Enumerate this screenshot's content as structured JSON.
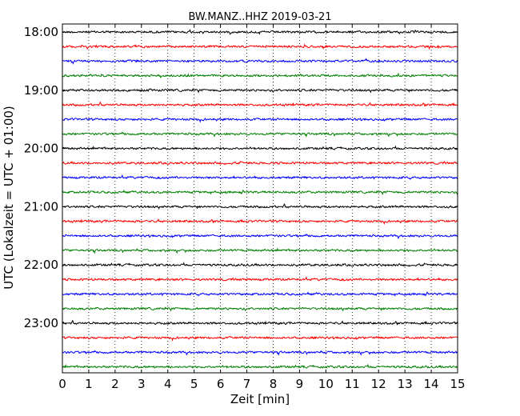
{
  "chart_data": {
    "type": "line",
    "title": "BW.MANZ..HHZ 2019-03-21",
    "xlabel": "Zeit  [min]",
    "ylabel": "UTC (Lokalzeit = UTC + 01:00)",
    "xlim": [
      0,
      15
    ],
    "x_ticks": [
      "0",
      "1",
      "2",
      "3",
      "4",
      "5",
      "6",
      "7",
      "8",
      "9",
      "10",
      "11",
      "12",
      "13",
      "14",
      "15"
    ],
    "y_ticks": [
      "18:00",
      "19:00",
      "20:00",
      "21:00",
      "22:00",
      "23:00"
    ],
    "x_grid": true,
    "row_minutes": 15,
    "start_time": "18:00",
    "end_time": "24:00",
    "row_count": 24,
    "series_colors": [
      "#000000",
      "#ff0000",
      "#0000ff",
      "#007f00"
    ],
    "rows": [
      {
        "start": "18:00",
        "color": "#000000"
      },
      {
        "start": "18:15",
        "color": "#ff0000"
      },
      {
        "start": "18:30",
        "color": "#0000ff"
      },
      {
        "start": "18:45",
        "color": "#007f00"
      },
      {
        "start": "19:00",
        "color": "#000000"
      },
      {
        "start": "19:15",
        "color": "#ff0000"
      },
      {
        "start": "19:30",
        "color": "#0000ff"
      },
      {
        "start": "19:45",
        "color": "#007f00"
      },
      {
        "start": "20:00",
        "color": "#000000"
      },
      {
        "start": "20:15",
        "color": "#ff0000"
      },
      {
        "start": "20:30",
        "color": "#0000ff"
      },
      {
        "start": "20:45",
        "color": "#007f00"
      },
      {
        "start": "21:00",
        "color": "#000000"
      },
      {
        "start": "21:15",
        "color": "#ff0000"
      },
      {
        "start": "21:30",
        "color": "#0000ff"
      },
      {
        "start": "21:45",
        "color": "#007f00"
      },
      {
        "start": "22:00",
        "color": "#000000"
      },
      {
        "start": "22:15",
        "color": "#ff0000"
      },
      {
        "start": "22:30",
        "color": "#0000ff"
      },
      {
        "start": "22:45",
        "color": "#007f00"
      },
      {
        "start": "23:00",
        "color": "#000000"
      },
      {
        "start": "23:15",
        "color": "#ff0000"
      },
      {
        "start": "23:30",
        "color": "#0000ff"
      },
      {
        "start": "23:45",
        "color": "#007f00"
      }
    ]
  }
}
